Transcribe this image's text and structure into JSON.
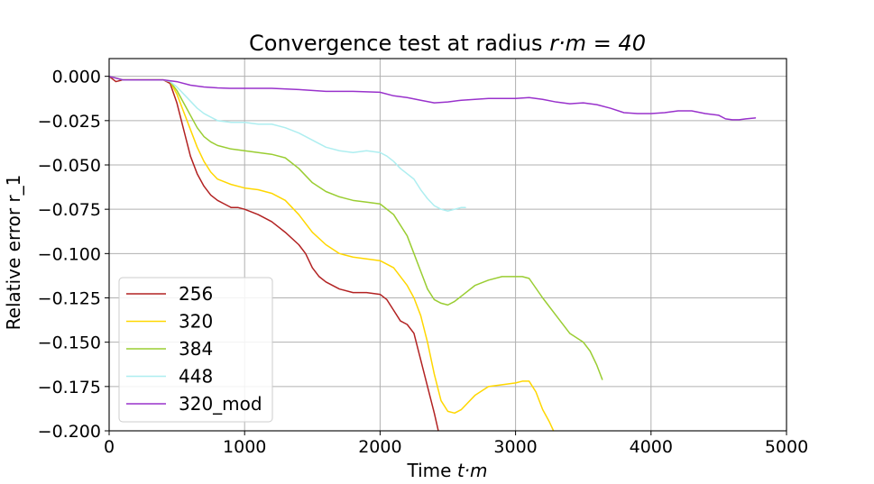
{
  "chart_data": {
    "type": "line",
    "title": "Convergence test at radius r·m = 40",
    "title_parts": {
      "text": "Convergence test at radius ",
      "math": "r·m = 40"
    },
    "xlabel": "Time t·m",
    "xlabel_parts": {
      "text": "Time ",
      "math": "t·m"
    },
    "ylabel": "Relative error r_1",
    "xlim": [
      0,
      5000
    ],
    "ylim": [
      -0.2,
      0.01
    ],
    "xticks": [
      0,
      1000,
      2000,
      3000,
      4000,
      5000
    ],
    "xtick_labels": [
      "0",
      "1000",
      "2000",
      "3000",
      "4000",
      "5000"
    ],
    "yticks": [
      0.0,
      -0.025,
      -0.05,
      -0.075,
      -0.1,
      -0.125,
      -0.15,
      -0.175,
      -0.2
    ],
    "ytick_labels": [
      "0.000",
      "−0.025",
      "−0.050",
      "−0.075",
      "−0.100",
      "−0.125",
      "−0.150",
      "−0.175",
      "−0.200"
    ],
    "grid": true,
    "legend_position": "lower-left",
    "series": [
      {
        "name": "256",
        "color": "#b22222",
        "x": [
          0,
          50,
          100,
          200,
          300,
          400,
          450,
          500,
          550,
          600,
          650,
          700,
          750,
          800,
          850,
          900,
          950,
          1000,
          1100,
          1200,
          1300,
          1400,
          1450,
          1500,
          1550,
          1600,
          1700,
          1800,
          1900,
          2000,
          2050,
          2100,
          2150,
          2200,
          2250,
          2300,
          2350,
          2400,
          2430
        ],
        "y": [
          0.0,
          -0.003,
          -0.002,
          -0.002,
          -0.002,
          -0.002,
          -0.004,
          -0.015,
          -0.03,
          -0.045,
          -0.055,
          -0.062,
          -0.067,
          -0.07,
          -0.072,
          -0.074,
          -0.074,
          -0.075,
          -0.078,
          -0.082,
          -0.088,
          -0.095,
          -0.1,
          -0.108,
          -0.113,
          -0.116,
          -0.12,
          -0.122,
          -0.122,
          -0.123,
          -0.126,
          -0.132,
          -0.138,
          -0.14,
          -0.145,
          -0.16,
          -0.175,
          -0.19,
          -0.2
        ]
      },
      {
        "name": "320",
        "color": "#ffd700",
        "x": [
          0,
          100,
          200,
          300,
          400,
          450,
          500,
          550,
          600,
          650,
          700,
          750,
          800,
          900,
          1000,
          1100,
          1200,
          1300,
          1400,
          1500,
          1600,
          1700,
          1800,
          1900,
          2000,
          2100,
          2200,
          2250,
          2300,
          2350,
          2400,
          2450,
          2500,
          2550,
          2600,
          2700,
          2800,
          2900,
          3000,
          3050,
          3100,
          3150,
          3200,
          3250,
          3280
        ],
        "y": [
          0.0,
          -0.002,
          -0.002,
          -0.002,
          -0.002,
          -0.003,
          -0.01,
          -0.02,
          -0.03,
          -0.04,
          -0.048,
          -0.054,
          -0.058,
          -0.061,
          -0.063,
          -0.064,
          -0.066,
          -0.07,
          -0.078,
          -0.088,
          -0.095,
          -0.1,
          -0.102,
          -0.103,
          -0.104,
          -0.108,
          -0.118,
          -0.125,
          -0.135,
          -0.15,
          -0.168,
          -0.183,
          -0.189,
          -0.19,
          -0.188,
          -0.18,
          -0.175,
          -0.174,
          -0.173,
          -0.172,
          -0.172,
          -0.178,
          -0.188,
          -0.195,
          -0.2
        ]
      },
      {
        "name": "384",
        "color": "#9acd32",
        "x": [
          0,
          100,
          200,
          300,
          400,
          450,
          500,
          550,
          600,
          650,
          700,
          750,
          800,
          900,
          1000,
          1100,
          1200,
          1300,
          1400,
          1500,
          1600,
          1700,
          1800,
          1900,
          2000,
          2100,
          2200,
          2250,
          2300,
          2350,
          2400,
          2450,
          2500,
          2550,
          2600,
          2700,
          2800,
          2900,
          3000,
          3050,
          3100,
          3200,
          3300,
          3400,
          3500,
          3550,
          3600,
          3640
        ],
        "y": [
          0.0,
          -0.002,
          -0.002,
          -0.002,
          -0.002,
          -0.003,
          -0.008,
          -0.015,
          -0.022,
          -0.029,
          -0.034,
          -0.037,
          -0.039,
          -0.041,
          -0.042,
          -0.043,
          -0.044,
          -0.046,
          -0.052,
          -0.06,
          -0.065,
          -0.068,
          -0.07,
          -0.071,
          -0.072,
          -0.078,
          -0.09,
          -0.1,
          -0.11,
          -0.12,
          -0.126,
          -0.128,
          -0.129,
          -0.127,
          -0.124,
          -0.118,
          -0.115,
          -0.113,
          -0.113,
          -0.113,
          -0.114,
          -0.125,
          -0.135,
          -0.145,
          -0.15,
          -0.155,
          -0.163,
          -0.171
        ]
      },
      {
        "name": "448",
        "color": "#aeeef0",
        "x": [
          0,
          100,
          200,
          300,
          400,
          450,
          500,
          550,
          600,
          650,
          700,
          750,
          800,
          900,
          1000,
          1100,
          1200,
          1300,
          1400,
          1500,
          1600,
          1700,
          1800,
          1900,
          2000,
          2050,
          2100,
          2150,
          2200,
          2250,
          2300,
          2350,
          2400,
          2450,
          2500,
          2550,
          2600,
          2630
        ],
        "y": [
          0.0,
          -0.002,
          -0.002,
          -0.002,
          -0.002,
          -0.003,
          -0.006,
          -0.01,
          -0.014,
          -0.018,
          -0.021,
          -0.023,
          -0.025,
          -0.026,
          -0.026,
          -0.027,
          -0.027,
          -0.029,
          -0.032,
          -0.036,
          -0.04,
          -0.042,
          -0.043,
          -0.042,
          -0.043,
          -0.045,
          -0.048,
          -0.052,
          -0.055,
          -0.058,
          -0.064,
          -0.069,
          -0.073,
          -0.075,
          -0.076,
          -0.075,
          -0.074,
          -0.074
        ]
      },
      {
        "name": "320_mod",
        "color": "#9932cc",
        "x": [
          0,
          100,
          200,
          300,
          400,
          500,
          600,
          700,
          800,
          900,
          1000,
          1200,
          1400,
          1600,
          1800,
          2000,
          2100,
          2200,
          2300,
          2400,
          2500,
          2600,
          2700,
          2800,
          2900,
          3000,
          3100,
          3200,
          3300,
          3400,
          3500,
          3600,
          3700,
          3800,
          3900,
          4000,
          4100,
          4200,
          4300,
          4400,
          4500,
          4550,
          4600,
          4650,
          4700,
          4770
        ],
        "y": [
          0.0,
          -0.002,
          -0.002,
          -0.002,
          -0.002,
          -0.003,
          -0.005,
          -0.006,
          -0.0065,
          -0.0068,
          -0.0068,
          -0.0068,
          -0.0075,
          -0.0085,
          -0.0085,
          -0.009,
          -0.011,
          -0.012,
          -0.0135,
          -0.015,
          -0.0145,
          -0.0135,
          -0.013,
          -0.0125,
          -0.0125,
          -0.0125,
          -0.012,
          -0.013,
          -0.0145,
          -0.0155,
          -0.015,
          -0.016,
          -0.018,
          -0.0205,
          -0.021,
          -0.021,
          -0.0205,
          -0.0195,
          -0.0195,
          -0.021,
          -0.022,
          -0.024,
          -0.0245,
          -0.0245,
          -0.024,
          -0.0235
        ]
      }
    ]
  }
}
